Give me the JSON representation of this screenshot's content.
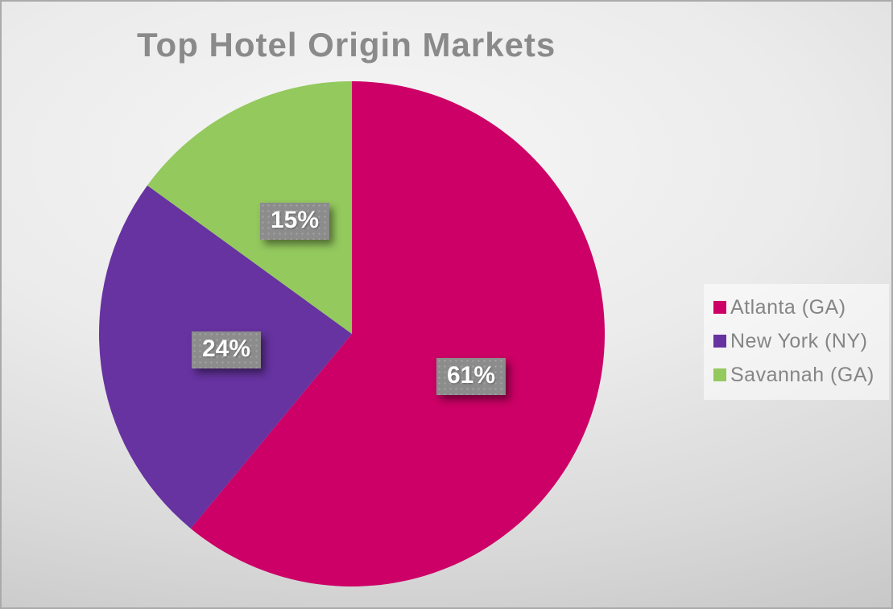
{
  "chart_data": {
    "type": "pie",
    "title": "Top Hotel Origin Markets",
    "start_angle_deg": 0,
    "direction": "clockwise",
    "legend_position": "right",
    "grid": false,
    "slices": [
      {
        "label": "Atlanta (GA)",
        "value": 61,
        "percent_label": "61%",
        "color": "#CC0066"
      },
      {
        "label": "New York (NY)",
        "value": 24,
        "percent_label": "24%",
        "color": "#6633A0"
      },
      {
        "label": "Savannah (GA)",
        "value": 15,
        "percent_label": "15%",
        "color": "#94C95E"
      }
    ],
    "data_label_style": {
      "text_color": "#FFFFFF",
      "box_color": "#8C8C8C"
    },
    "title_color": "#8A8A8A",
    "legend_text_color": "#858585"
  }
}
